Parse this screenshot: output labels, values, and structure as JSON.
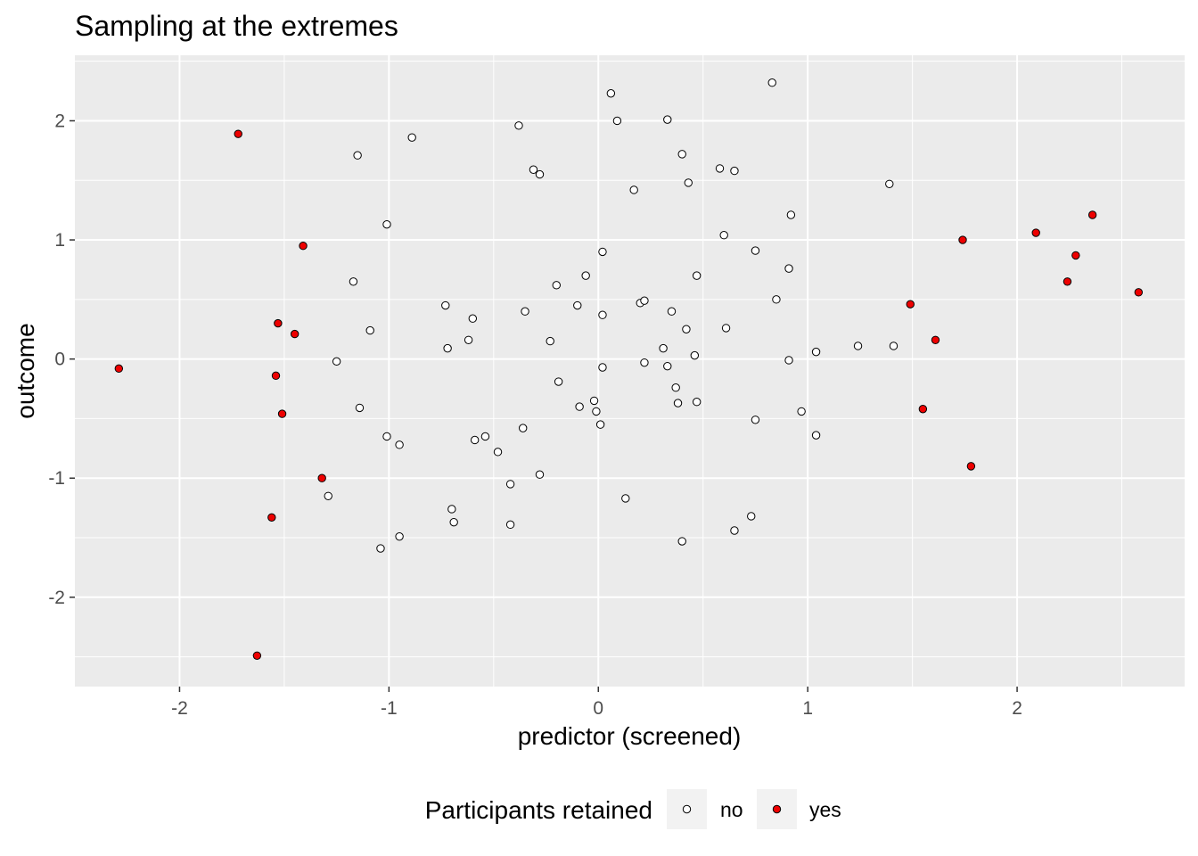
{
  "chart_data": {
    "type": "scatter",
    "title": "Sampling at the extremes",
    "xlabel": "predictor (screened)",
    "ylabel": "outcome",
    "xlim": [
      -2.5,
      2.8
    ],
    "ylim": [
      -2.75,
      2.55
    ],
    "x_ticks": [
      -2,
      -1,
      0,
      1,
      2
    ],
    "y_ticks": [
      -2,
      -1,
      0,
      1,
      2
    ],
    "grid": true,
    "legend": {
      "title": "Participants retained",
      "position": "bottom",
      "entries": [
        {
          "label": "no",
          "color": "#ffffff"
        },
        {
          "label": "yes",
          "color": "#ee0000"
        }
      ]
    },
    "series": [
      {
        "name": "no",
        "color": "#ffffff",
        "points": [
          [
            0.06,
            2.23
          ],
          [
            0.83,
            2.32
          ],
          [
            0.09,
            2.0
          ],
          [
            0.33,
            2.01
          ],
          [
            -0.38,
            1.96
          ],
          [
            -0.89,
            1.86
          ],
          [
            -1.15,
            1.71
          ],
          [
            0.4,
            1.72
          ],
          [
            -0.31,
            1.59
          ],
          [
            -0.28,
            1.55
          ],
          [
            0.58,
            1.6
          ],
          [
            0.65,
            1.58
          ],
          [
            0.43,
            1.48
          ],
          [
            0.17,
            1.42
          ],
          [
            1.39,
            1.47
          ],
          [
            -1.01,
            1.13
          ],
          [
            0.92,
            1.21
          ],
          [
            0.6,
            1.04
          ],
          [
            0.02,
            0.9
          ],
          [
            0.75,
            0.91
          ],
          [
            0.91,
            0.76
          ],
          [
            -0.06,
            0.7
          ],
          [
            0.47,
            0.7
          ],
          [
            -1.17,
            0.65
          ],
          [
            -0.2,
            0.62
          ],
          [
            0.85,
            0.5
          ],
          [
            0.2,
            0.47
          ],
          [
            0.22,
            0.49
          ],
          [
            -0.73,
            0.45
          ],
          [
            -0.1,
            0.45
          ],
          [
            -0.35,
            0.4
          ],
          [
            0.35,
            0.4
          ],
          [
            -0.6,
            0.34
          ],
          [
            0.02,
            0.37
          ],
          [
            -1.09,
            0.24
          ],
          [
            0.42,
            0.25
          ],
          [
            0.61,
            0.26
          ],
          [
            -0.62,
            0.16
          ],
          [
            -0.23,
            0.15
          ],
          [
            -0.72,
            0.09
          ],
          [
            0.31,
            0.09
          ],
          [
            1.24,
            0.11
          ],
          [
            1.41,
            0.11
          ],
          [
            1.04,
            0.06
          ],
          [
            0.46,
            0.03
          ],
          [
            -1.25,
            -0.02
          ],
          [
            0.91,
            -0.01
          ],
          [
            0.22,
            -0.03
          ],
          [
            0.33,
            -0.06
          ],
          [
            0.02,
            -0.07
          ],
          [
            -0.19,
            -0.19
          ],
          [
            0.37,
            -0.24
          ],
          [
            -0.02,
            -0.35
          ],
          [
            0.38,
            -0.37
          ],
          [
            0.47,
            -0.36
          ],
          [
            -0.09,
            -0.4
          ],
          [
            -1.14,
            -0.41
          ],
          [
            -0.01,
            -0.44
          ],
          [
            0.97,
            -0.44
          ],
          [
            0.75,
            -0.51
          ],
          [
            0.01,
            -0.55
          ],
          [
            -0.36,
            -0.58
          ],
          [
            -1.01,
            -0.65
          ],
          [
            -0.54,
            -0.65
          ],
          [
            -0.59,
            -0.68
          ],
          [
            1.04,
            -0.64
          ],
          [
            -0.95,
            -0.72
          ],
          [
            -0.48,
            -0.78
          ],
          [
            -0.28,
            -0.97
          ],
          [
            -0.42,
            -1.05
          ],
          [
            -1.29,
            -1.15
          ],
          [
            0.13,
            -1.17
          ],
          [
            -0.7,
            -1.26
          ],
          [
            -0.69,
            -1.37
          ],
          [
            0.73,
            -1.32
          ],
          [
            -0.42,
            -1.39
          ],
          [
            0.65,
            -1.44
          ],
          [
            -0.95,
            -1.49
          ],
          [
            0.4,
            -1.53
          ],
          [
            -1.04,
            -1.59
          ]
        ]
      },
      {
        "name": "yes",
        "color": "#ee0000",
        "points": [
          [
            -1.72,
            1.89
          ],
          [
            -1.41,
            0.95
          ],
          [
            -1.53,
            0.3
          ],
          [
            -1.45,
            0.21
          ],
          [
            -2.29,
            -0.08
          ],
          [
            -1.54,
            -0.14
          ],
          [
            -1.51,
            -0.46
          ],
          [
            -1.32,
            -1.0
          ],
          [
            -1.56,
            -1.33
          ],
          [
            -1.63,
            -2.49
          ],
          [
            1.74,
            1.0
          ],
          [
            2.09,
            1.06
          ],
          [
            2.36,
            1.21
          ],
          [
            2.28,
            0.87
          ],
          [
            2.24,
            0.65
          ],
          [
            2.58,
            0.56
          ],
          [
            1.49,
            0.46
          ],
          [
            1.61,
            0.16
          ],
          [
            1.55,
            -0.42
          ],
          [
            1.78,
            -0.9
          ]
        ]
      }
    ]
  }
}
